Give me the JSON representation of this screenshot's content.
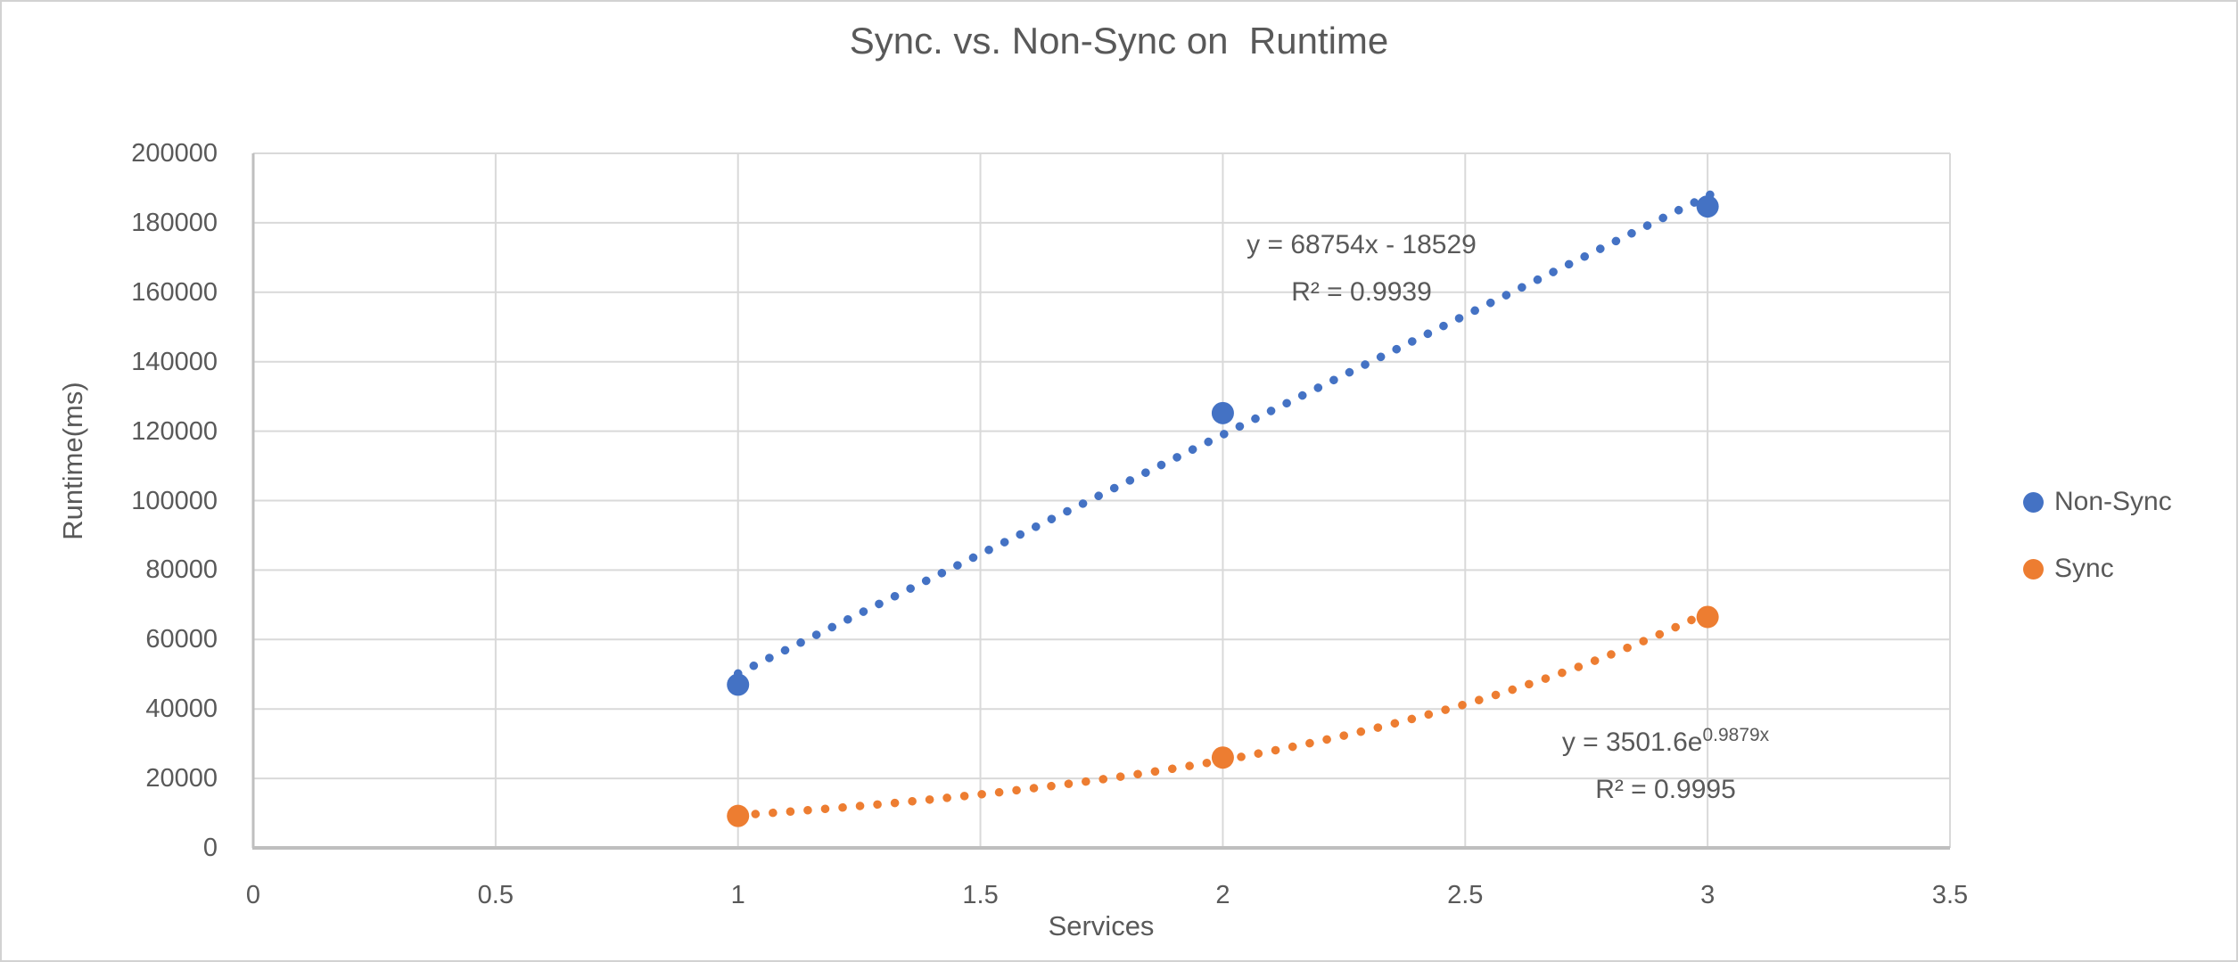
{
  "colors": {
    "text": "#595959",
    "gridline": "#d9d9d9",
    "axis_line": "#bfbfbf",
    "frame_border": "#d2d2d2",
    "background": "#ffffff",
    "non_sync_blue": "#4472c4",
    "sync_orange": "#ed7d31"
  },
  "chart_data": {
    "type": "scatter",
    "title": "Sync. vs. Non-Sync on  Runtime",
    "xlabel": "Services",
    "ylabel": "Runtime(ms)",
    "xlim": [
      0,
      3.5
    ],
    "ylim": [
      0,
      200000
    ],
    "xticks": [
      "0",
      "0.5",
      "1",
      "1.5",
      "2",
      "2.5",
      "3",
      "3.5"
    ],
    "yticks": [
      "0",
      "20000",
      "40000",
      "60000",
      "80000",
      "100000",
      "120000",
      "140000",
      "160000",
      "180000",
      "200000"
    ],
    "grid": true,
    "legend_position": "right",
    "series": [
      {
        "name": "Non-Sync",
        "color": "#4472c4",
        "x": [
          1,
          2,
          3
        ],
        "y": [
          47000,
          125200,
          184700
        ],
        "trendline": {
          "kind": "linear",
          "slope": 68754,
          "intercept": -18529,
          "style": "dotted",
          "range": [
            1,
            3.02
          ],
          "equation": "y = 68754x - 18529",
          "r2": "R² = 0.9939"
        }
      },
      {
        "name": "Sync",
        "color": "#ed7d31",
        "x": [
          1,
          2,
          3
        ],
        "y": [
          9200,
          26000,
          66500
        ],
        "trendline": {
          "kind": "exponential",
          "a": 3501.6,
          "b": 0.9879,
          "style": "dotted",
          "range": [
            1,
            3
          ],
          "equation_prefix": "y = 3501.6e",
          "equation_exponent": "0.9879x",
          "r2": "R² = 0.9995"
        }
      }
    ]
  }
}
